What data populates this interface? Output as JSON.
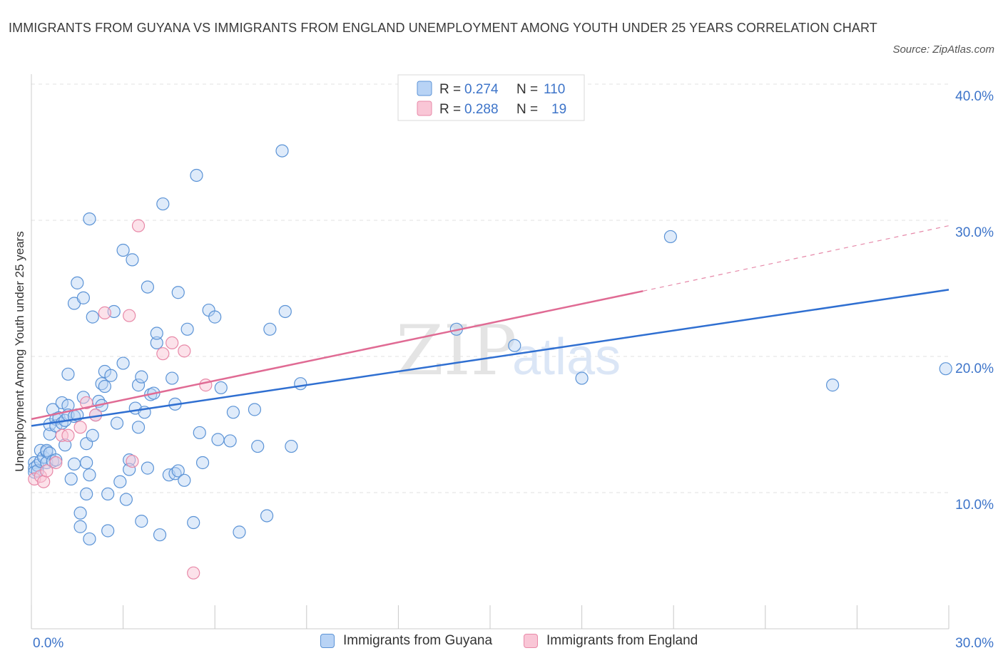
{
  "title": "IMMIGRANTS FROM GUYANA VS IMMIGRANTS FROM ENGLAND UNEMPLOYMENT AMONG YOUTH UNDER 25 YEARS CORRELATION CHART",
  "source": "Source: ZipAtlas.com",
  "watermark": {
    "zip": "ZIP",
    "atlas": "atlas"
  },
  "colors": {
    "guyana_fill": "#b8d3f5",
    "guyana_stroke": "#5b93d6",
    "guyana_line": "#2f6fd1",
    "england_fill": "#f9c6d6",
    "england_stroke": "#e889a8",
    "england_line": "#e06b94",
    "axis_label": "#3d74c9",
    "grid": "#e2e2e2"
  },
  "legend_top": {
    "rows": [
      {
        "r_label": "R = ",
        "r_value": "0.274",
        "n_label": "N = ",
        "n_value": "110"
      },
      {
        "r_label": "R = ",
        "r_value": "0.288",
        "n_label": "N = ",
        "n_value": "19"
      }
    ]
  },
  "legend_bottom": [
    "Immigrants from Guyana",
    "Immigrants from England"
  ],
  "chart_data": {
    "type": "scatter",
    "xlabel": "",
    "ylabel": "Unemployment Among Youth under 25 years",
    "xlim": [
      0,
      30
    ],
    "ylim": [
      0,
      40
    ],
    "x_tick_labels": [
      "0.0%",
      "30.0%"
    ],
    "y_tick_labels": [
      "10.0%",
      "20.0%",
      "30.0%",
      "40.0%"
    ],
    "y_ticks": [
      10,
      20,
      30,
      40
    ],
    "grid": true,
    "legend": "top-center",
    "series": [
      {
        "name": "Immigrants from Guyana",
        "trend": {
          "x0": 0,
          "y0": 14.9,
          "x1": 30,
          "y1": 24.9
        },
        "points": [
          [
            0.1,
            12.2
          ],
          [
            0.1,
            11.8
          ],
          [
            0.1,
            11.5
          ],
          [
            0.2,
            12.0
          ],
          [
            0.2,
            11.6
          ],
          [
            0.3,
            13.1
          ],
          [
            0.3,
            12.3
          ],
          [
            0.4,
            12.6
          ],
          [
            0.5,
            13.0
          ],
          [
            0.5,
            12.2
          ],
          [
            0.5,
            13.1
          ],
          [
            0.6,
            14.3
          ],
          [
            0.6,
            12.9
          ],
          [
            0.6,
            15.0
          ],
          [
            0.7,
            12.3
          ],
          [
            0.7,
            16.1
          ],
          [
            0.8,
            15.4
          ],
          [
            0.8,
            12.4
          ],
          [
            0.8,
            14.9
          ],
          [
            0.9,
            15.5
          ],
          [
            1.0,
            16.6
          ],
          [
            1.0,
            15.1
          ],
          [
            1.1,
            15.3
          ],
          [
            1.1,
            13.5
          ],
          [
            1.2,
            16.4
          ],
          [
            1.2,
            15.7
          ],
          [
            1.2,
            18.7
          ],
          [
            1.3,
            11.0
          ],
          [
            1.4,
            12.1
          ],
          [
            1.4,
            15.6
          ],
          [
            1.4,
            23.9
          ],
          [
            1.5,
            15.7
          ],
          [
            1.5,
            25.4
          ],
          [
            1.6,
            8.5
          ],
          [
            1.6,
            7.5
          ],
          [
            1.7,
            24.3
          ],
          [
            1.7,
            17.0
          ],
          [
            1.8,
            12.2
          ],
          [
            1.8,
            13.6
          ],
          [
            1.8,
            9.9
          ],
          [
            1.9,
            6.6
          ],
          [
            1.9,
            11.3
          ],
          [
            1.9,
            30.1
          ],
          [
            2.0,
            14.2
          ],
          [
            2.0,
            22.9
          ],
          [
            2.1,
            15.7
          ],
          [
            2.2,
            16.7
          ],
          [
            2.3,
            18.0
          ],
          [
            2.3,
            16.4
          ],
          [
            2.4,
            17.8
          ],
          [
            2.4,
            18.9
          ],
          [
            2.5,
            9.9
          ],
          [
            2.5,
            7.2
          ],
          [
            2.6,
            18.6
          ],
          [
            2.7,
            23.3
          ],
          [
            2.8,
            15.1
          ],
          [
            2.9,
            10.8
          ],
          [
            3.0,
            19.5
          ],
          [
            3.0,
            27.8
          ],
          [
            3.1,
            9.5
          ],
          [
            3.2,
            12.4
          ],
          [
            3.2,
            11.7
          ],
          [
            3.3,
            27.1
          ],
          [
            3.4,
            16.2
          ],
          [
            3.5,
            17.9
          ],
          [
            3.5,
            14.8
          ],
          [
            3.6,
            18.5
          ],
          [
            3.6,
            7.9
          ],
          [
            3.7,
            15.9
          ],
          [
            3.8,
            11.8
          ],
          [
            3.8,
            25.1
          ],
          [
            3.9,
            17.2
          ],
          [
            4.0,
            17.3
          ],
          [
            4.1,
            21.0
          ],
          [
            4.1,
            21.7
          ],
          [
            4.2,
            6.9
          ],
          [
            4.3,
            31.2
          ],
          [
            4.5,
            11.3
          ],
          [
            4.6,
            18.4
          ],
          [
            4.7,
            11.4
          ],
          [
            4.7,
            16.5
          ],
          [
            4.8,
            11.6
          ],
          [
            4.8,
            24.7
          ],
          [
            5.0,
            10.9
          ],
          [
            5.1,
            22.0
          ],
          [
            5.3,
            7.8
          ],
          [
            5.5,
            14.4
          ],
          [
            5.6,
            12.2
          ],
          [
            5.4,
            33.3
          ],
          [
            5.8,
            23.4
          ],
          [
            6.0,
            22.9
          ],
          [
            6.1,
            13.9
          ],
          [
            6.2,
            17.7
          ],
          [
            6.5,
            13.8
          ],
          [
            6.6,
            15.9
          ],
          [
            6.8,
            7.1
          ],
          [
            7.3,
            16.1
          ],
          [
            7.4,
            13.4
          ],
          [
            7.7,
            8.3
          ],
          [
            7.8,
            22.0
          ],
          [
            8.2,
            35.1
          ],
          [
            8.3,
            23.3
          ],
          [
            8.5,
            13.4
          ],
          [
            8.8,
            18.0
          ],
          [
            13.9,
            22.0
          ],
          [
            15.8,
            20.8
          ],
          [
            18.0,
            18.4
          ],
          [
            20.9,
            28.8
          ],
          [
            26.2,
            17.9
          ],
          [
            29.9,
            19.1
          ]
        ]
      },
      {
        "name": "Immigrants from England",
        "trend": {
          "x0": 0,
          "y0": 15.4,
          "x1": 20,
          "y1": 24.8,
          "dash_to_x": 30,
          "dash_to_y": 29.6
        },
        "points": [
          [
            0.1,
            11.0
          ],
          [
            0.3,
            11.2
          ],
          [
            0.4,
            10.8
          ],
          [
            0.5,
            11.6
          ],
          [
            0.8,
            12.2
          ],
          [
            1.0,
            14.2
          ],
          [
            1.2,
            14.2
          ],
          [
            1.6,
            14.8
          ],
          [
            1.8,
            16.6
          ],
          [
            2.1,
            15.7
          ],
          [
            2.4,
            23.2
          ],
          [
            3.2,
            23.0
          ],
          [
            3.3,
            12.3
          ],
          [
            3.5,
            29.6
          ],
          [
            4.3,
            20.2
          ],
          [
            4.6,
            21.0
          ],
          [
            5.0,
            20.4
          ],
          [
            5.3,
            4.1
          ],
          [
            5.7,
            17.9
          ]
        ]
      }
    ]
  }
}
